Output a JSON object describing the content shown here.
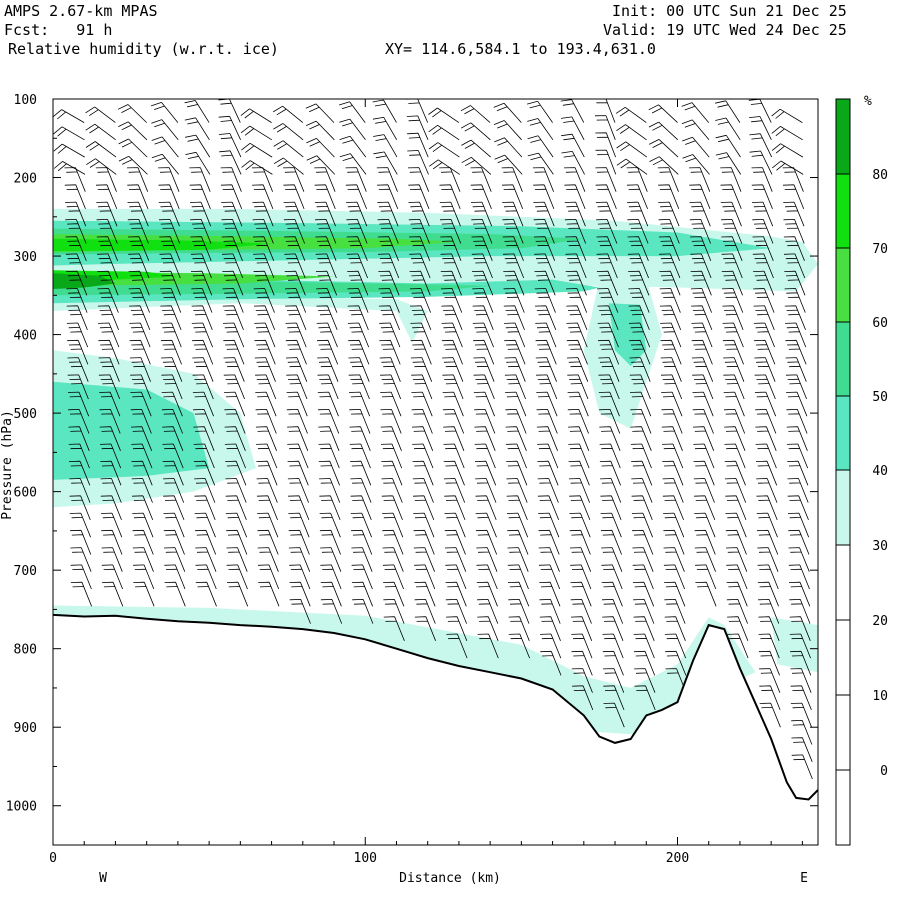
{
  "header": {
    "model": "AMPS 2.67-km MPAS",
    "forecast": "Fcst:   91 h",
    "field": "Relative humidity (w.r.t. ice)",
    "init": "Init: 00 UTC Sun 21 Dec 25",
    "valid": "Valid: 19 UTC Wed 24 Dec 25",
    "xy": "XY= 114.6,584.1 to 193.4,631.0"
  },
  "colors": {
    "rh_30_40": "#c8f8ec",
    "rh_40_50": "#5ae6c0",
    "rh_50_60": "#40dc90",
    "rh_60_70": "#48e040",
    "rh_70_80": "#10e010",
    "rh_80_plus": "#08a818",
    "terrain_line": "#000000",
    "barb": "#000000"
  },
  "chart_data": {
    "type": "heatmap",
    "title": "Relative humidity (w.r.t. ice)",
    "xlabel": "Distance (km)",
    "ylabel": "Pressure (hPa)",
    "xlim": [
      0,
      245
    ],
    "ylim": [
      1050,
      100
    ],
    "x_ticks": [
      0,
      100,
      200
    ],
    "y_ticks": [
      100,
      200,
      300,
      400,
      500,
      600,
      700,
      800,
      900,
      1000
    ],
    "x_end_labels": {
      "left": "W",
      "right": "E"
    },
    "legend": {
      "unit": "%",
      "levels": [
        80,
        70,
        60,
        50,
        40,
        30,
        20,
        10,
        0
      ],
      "placement": "right"
    },
    "terrain_surface_hPa": {
      "x": [
        0,
        10,
        20,
        30,
        40,
        50,
        60,
        70,
        80,
        90,
        100,
        110,
        120,
        130,
        140,
        150,
        160,
        170,
        175,
        180,
        185,
        190,
        195,
        200,
        205,
        210,
        215,
        220,
        225,
        230,
        235,
        238,
        242,
        245
      ],
      "p": [
        757,
        759,
        758,
        762,
        765,
        767,
        770,
        772,
        775,
        780,
        788,
        800,
        812,
        822,
        830,
        838,
        852,
        885,
        912,
        920,
        915,
        885,
        878,
        868,
        815,
        770,
        775,
        825,
        870,
        915,
        970,
        990,
        992,
        980
      ]
    },
    "rh_regions": [
      {
        "rh": 35,
        "outline": [
          [
            0,
            240
          ],
          [
            60,
            240
          ],
          [
            120,
            245
          ],
          [
            180,
            255
          ],
          [
            230,
            275
          ],
          [
            240,
            282
          ],
          [
            245,
            310
          ],
          [
            238,
            345
          ],
          [
            200,
            340
          ],
          [
            140,
            335
          ],
          [
            80,
            340
          ],
          [
            30,
            348
          ],
          [
            0,
            350
          ],
          [
            0,
            340
          ]
        ]
      },
      {
        "rh": 35,
        "outline": [
          [
            0,
            345
          ],
          [
            50,
            350
          ],
          [
            110,
            355
          ],
          [
            120,
            370
          ],
          [
            115,
            410
          ],
          [
            110,
            370
          ],
          [
            60,
            360
          ],
          [
            0,
            370
          ]
        ]
      },
      {
        "rh": 35,
        "outline": [
          [
            175,
            330
          ],
          [
            190,
            328
          ],
          [
            195,
            400
          ],
          [
            185,
            520
          ],
          [
            175,
            500
          ],
          [
            170,
            420
          ]
        ]
      },
      {
        "rh": 35,
        "outline": [
          [
            0,
            420
          ],
          [
            20,
            430
          ],
          [
            45,
            450
          ],
          [
            60,
            500
          ],
          [
            65,
            570
          ],
          [
            45,
            600
          ],
          [
            20,
            615
          ],
          [
            0,
            620
          ]
        ]
      },
      {
        "rh": 35,
        "outline": [
          [
            230,
            760
          ],
          [
            245,
            770
          ],
          [
            245,
            830
          ],
          [
            232,
            820
          ]
        ]
      },
      {
        "rh": 35,
        "outline": [
          [
            0,
            745
          ],
          [
            50,
            748
          ],
          [
            100,
            758
          ],
          [
            150,
            795
          ],
          [
            170,
            835
          ],
          [
            185,
            850
          ],
          [
            200,
            820
          ],
          [
            210,
            760
          ],
          [
            215,
            770
          ],
          [
            225,
            830
          ],
          [
            205,
            865
          ],
          [
            190,
            910
          ],
          [
            170,
            905
          ],
          [
            160,
            860
          ],
          [
            140,
            830
          ],
          [
            100,
            792
          ],
          [
            50,
            770
          ],
          [
            0,
            760
          ]
        ]
      },
      {
        "rh": 45,
        "outline": [
          [
            0,
            255
          ],
          [
            80,
            258
          ],
          [
            150,
            262
          ],
          [
            200,
            270
          ],
          [
            230,
            290
          ],
          [
            200,
            300
          ],
          [
            140,
            300
          ],
          [
            80,
            305
          ],
          [
            20,
            310
          ],
          [
            0,
            312
          ]
        ]
      },
      {
        "rh": 45,
        "outline": [
          [
            0,
            330
          ],
          [
            60,
            330
          ],
          [
            120,
            335
          ],
          [
            160,
            330
          ],
          [
            175,
            340
          ],
          [
            170,
            345
          ],
          [
            120,
            352
          ],
          [
            60,
            355
          ],
          [
            0,
            360
          ]
        ]
      },
      {
        "rh": 45,
        "outline": [
          [
            178,
            360
          ],
          [
            188,
            362
          ],
          [
            190,
            420
          ],
          [
            185,
            440
          ],
          [
            180,
            420
          ]
        ]
      },
      {
        "rh": 45,
        "outline": [
          [
            0,
            460
          ],
          [
            30,
            470
          ],
          [
            45,
            500
          ],
          [
            50,
            570
          ],
          [
            30,
            580
          ],
          [
            0,
            585
          ]
        ]
      },
      {
        "rh": 55,
        "outline": [
          [
            0,
            265
          ],
          [
            70,
            268
          ],
          [
            140,
            272
          ],
          [
            170,
            278
          ],
          [
            150,
            290
          ],
          [
            100,
            295
          ],
          [
            50,
            296
          ],
          [
            0,
            298
          ]
        ]
      },
      {
        "rh": 55,
        "outline": [
          [
            0,
            330
          ],
          [
            60,
            332
          ],
          [
            120,
            336
          ],
          [
            140,
            338
          ],
          [
            120,
            345
          ],
          [
            60,
            348
          ],
          [
            0,
            350
          ]
        ]
      },
      {
        "rh": 65,
        "outline": [
          [
            0,
            272
          ],
          [
            60,
            275
          ],
          [
            110,
            278
          ],
          [
            130,
            282
          ],
          [
            100,
            290
          ],
          [
            50,
            292
          ],
          [
            0,
            295
          ]
        ]
      },
      {
        "rh": 65,
        "outline": [
          [
            0,
            320
          ],
          [
            50,
            322
          ],
          [
            90,
            326
          ],
          [
            60,
            335
          ],
          [
            0,
            338
          ]
        ]
      },
      {
        "rh": 75,
        "outline": [
          [
            0,
            278
          ],
          [
            40,
            280
          ],
          [
            70,
            284
          ],
          [
            50,
            292
          ],
          [
            0,
            294
          ]
        ]
      },
      {
        "rh": 75,
        "outline": [
          [
            0,
            318
          ],
          [
            30,
            320
          ],
          [
            40,
            326
          ],
          [
            20,
            330
          ],
          [
            0,
            332
          ]
        ]
      },
      {
        "rh": 85,
        "outline": [
          [
            0,
            322
          ],
          [
            15,
            325
          ],
          [
            20,
            335
          ],
          [
            10,
            340
          ],
          [
            0,
            342
          ]
        ]
      }
    ],
    "wind_barb_columns_km": [
      10,
      20,
      30,
      40,
      50,
      60,
      70,
      80,
      90,
      100,
      110,
      120,
      130,
      140,
      150,
      160,
      170,
      180,
      190,
      200,
      210,
      220,
      230,
      240
    ]
  }
}
